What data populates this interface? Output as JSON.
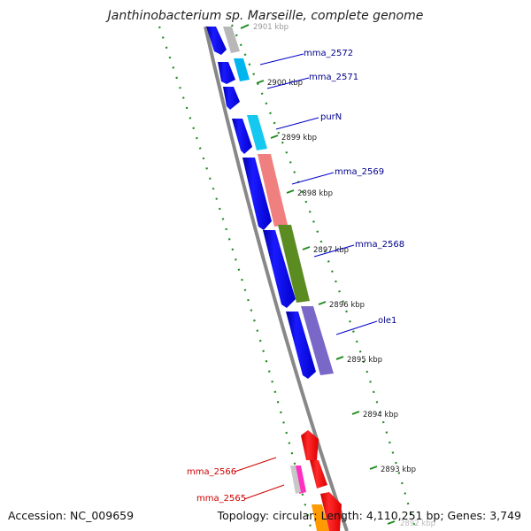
{
  "title": "Janthinobacterium sp. Marseille, complete genome",
  "footer": {
    "accession": "Accession: NC_009659",
    "topology": "Topology: circular; Length: 4,110,251 bp; Genes: 3,749"
  },
  "scale_ticks": [
    "2901 kbp",
    "2900 kbp",
    "2899 kbp",
    "2898 kbp",
    "2897 kbp",
    "2896 kbp",
    "2895 kbp",
    "2894 kbp",
    "2893 kbp",
    "2892 kbp"
  ],
  "gene_labels": [
    {
      "name": "mma_2572",
      "color": "#00008b"
    },
    {
      "name": "mma_2571",
      "color": "#00008b"
    },
    {
      "name": "purN",
      "color": "#00008b"
    },
    {
      "name": "mma_2569",
      "color": "#00008b"
    },
    {
      "name": "mma_2568",
      "color": "#00008b"
    },
    {
      "name": "ole1",
      "color": "#00008b"
    },
    {
      "name": "mma_2566",
      "color": "#cc0000"
    },
    {
      "name": "mma_2565",
      "color": "#cc0000"
    }
  ],
  "colors": {
    "backbone": "#777777",
    "scale": "#228b22",
    "forward_strand": "#0000ee",
    "reverse_strand": "#ee0000"
  }
}
